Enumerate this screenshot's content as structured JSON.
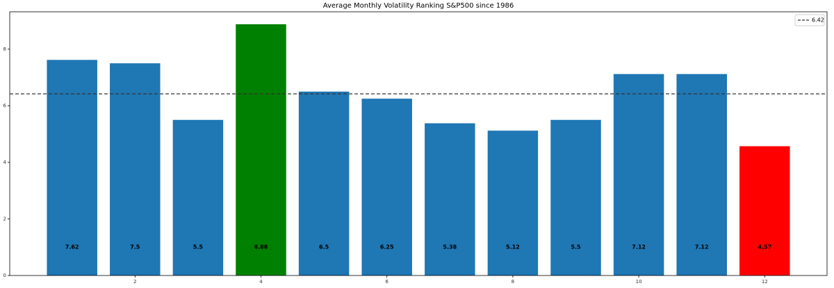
{
  "chart_data": {
    "type": "bar",
    "title": "Average Monthly Volatility Ranking S&P500 since 1986",
    "x": [
      1,
      2,
      3,
      4,
      5,
      6,
      7,
      8,
      9,
      10,
      11,
      12
    ],
    "values": [
      7.62,
      7.5,
      5.5,
      8.88,
      6.5,
      6.25,
      5.38,
      5.12,
      5.5,
      7.12,
      7.12,
      4.57
    ],
    "colors": [
      "#1f77b4",
      "#1f77b4",
      "#1f77b4",
      "#008000",
      "#1f77b4",
      "#1f77b4",
      "#1f77b4",
      "#1f77b4",
      "#1f77b4",
      "#1f77b4",
      "#1f77b4",
      "#ff0000"
    ],
    "hline": 6.42,
    "xlim": [
      0.01,
      12.99
    ],
    "xticks": [
      2,
      4,
      6,
      8,
      10,
      12
    ],
    "ylim": [
      0,
      9.32
    ],
    "yticks": [
      0,
      2,
      4,
      6,
      8
    ],
    "legend": "upper right"
  }
}
